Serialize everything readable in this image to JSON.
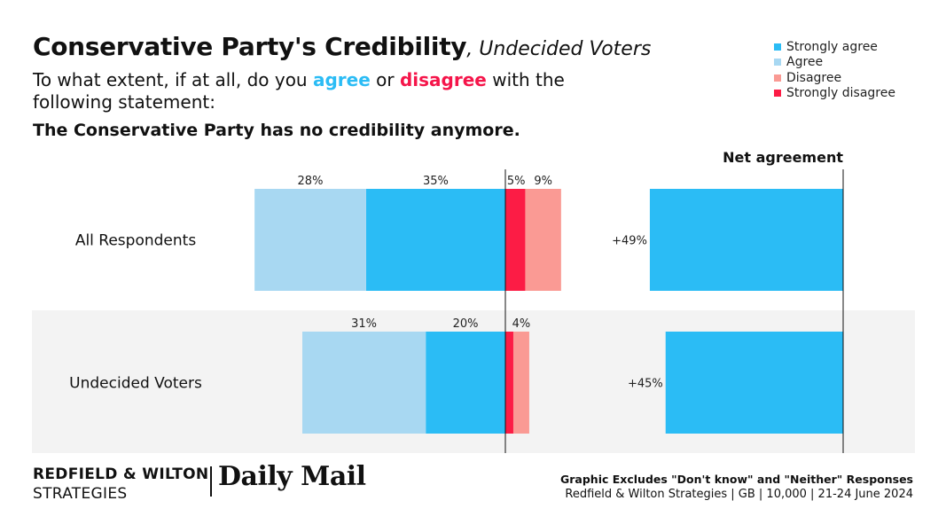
{
  "title": {
    "main": "Conservative Party's Credibility",
    "sub": ", Undecided Voters"
  },
  "question": {
    "prefix": "To what extent, if at all, do you ",
    "agree_word": "agree",
    "middle": " or ",
    "disagree_word": "disagree",
    "suffix": " with the following statement:"
  },
  "statement": "The Conservative Party has no credibility anymore.",
  "legend": [
    {
      "label": "Strongly agree",
      "color": "#2bbcf5"
    },
    {
      "label": "Agree",
      "color": "#a8d8f2"
    },
    {
      "label": "Disagree",
      "color": "#fa9a94"
    },
    {
      "label": "Strongly disagree",
      "color": "#fc1c45"
    }
  ],
  "chart_data": {
    "type": "bar",
    "stacking": "diverging",
    "categories": [
      "All Respondents",
      "Undecided Voters"
    ],
    "series": [
      {
        "name": "Strongly agree",
        "values": [
          35,
          20
        ],
        "labels": [
          "35%",
          "20%"
        ],
        "color": "#2bbcf5"
      },
      {
        "name": "Agree",
        "values": [
          28,
          31
        ],
        "labels": [
          "28%",
          "31%"
        ],
        "color": "#a8d8f2"
      },
      {
        "name": "Strongly disagree",
        "values": [
          5,
          2
        ],
        "labels": [
          "5%",
          ""
        ],
        "color": "#fc1c45"
      },
      {
        "name": "Disagree",
        "values": [
          9,
          4
        ],
        "labels": [
          "9%",
          "4%"
        ],
        "color": "#fa9a94"
      }
    ],
    "net_agreement": {
      "title": "Net agreement",
      "values": [
        49,
        45
      ],
      "labels": [
        "+49%",
        "+45%"
      ],
      "color": "#2bbcf5"
    },
    "row_shading": [
      false,
      true
    ],
    "shading_color": "#f3f3f3"
  },
  "footer": {
    "brand_line1": "REDFIELD & WILTON",
    "brand_line2": "STRATEGIES",
    "partner": "Daily Mail",
    "note_line1": "Graphic Excludes \"Don't know\" and \"Neither\" Responses",
    "note_line2": "Redfield & Wilton Strategies | GB | 10,000 | 21-24 June 2024"
  }
}
